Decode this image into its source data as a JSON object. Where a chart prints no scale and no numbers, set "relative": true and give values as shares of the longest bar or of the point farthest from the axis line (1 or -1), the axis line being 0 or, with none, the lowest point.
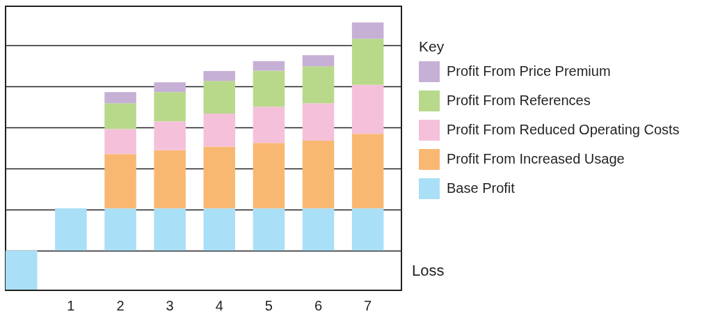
{
  "chart_data": {
    "type": "bar",
    "stacked": true,
    "relative": true,
    "grid": true,
    "legend": "right",
    "legend_title": "Key",
    "categories": [
      null,
      "1",
      "2",
      "3",
      "4",
      "5",
      "6",
      "7"
    ],
    "series": [
      {
        "name": "Base Profit",
        "color": "#a9dff7",
        "values": [
          -0.171,
          0.185,
          0.185,
          0.185,
          0.185,
          0.185,
          0.185,
          0.185
        ]
      },
      {
        "name": "Profit From Increased Usage",
        "color": "#f9b872",
        "values": [
          null,
          null,
          0.238,
          0.255,
          0.271,
          0.287,
          0.297,
          0.327
        ]
      },
      {
        "name": "Profit From Reduced Operating Costs",
        "color": "#f5c0d9",
        "values": [
          null,
          null,
          0.11,
          0.127,
          0.145,
          0.159,
          0.164,
          0.215
        ]
      },
      {
        "name": "Profit From References",
        "color": "#b8d98a",
        "values": [
          null,
          null,
          0.113,
          0.128,
          0.143,
          0.158,
          0.162,
          0.201
        ]
      },
      {
        "name": "Profit From Price Premium",
        "color": "#c6b0d5",
        "values": [
          null,
          null,
          0.049,
          0.043,
          0.043,
          0.042,
          0.049,
          0.072
        ]
      }
    ],
    "annotations": [
      "Loss"
    ]
  }
}
